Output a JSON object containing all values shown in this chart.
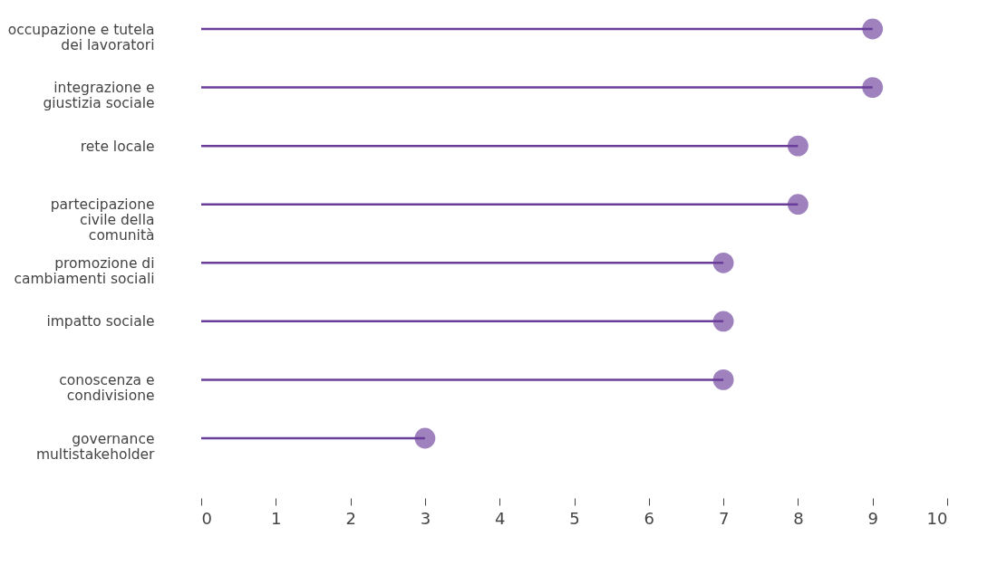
{
  "chart_data": {
    "type": "lollipop",
    "orientation": "horizontal",
    "categories": [
      "occupazione e tutela dei lavoratori",
      "integrazione e giustizia sociale",
      "rete locale",
      "partecipazione civile della comunità",
      "promozione di cambiamenti sociali",
      "impatto sociale",
      "conoscenza e condivisione",
      "governance multistakeholder"
    ],
    "series": [
      {
        "color": "#6a3d9a",
        "values": [
          9,
          9,
          8,
          8,
          7,
          7,
          7,
          3
        ]
      }
    ],
    "marker": "circle",
    "xlim": [
      0,
      10
    ],
    "xticks": [
      0,
      1,
      2,
      3,
      4,
      5,
      6,
      7,
      8,
      9,
      10
    ],
    "grid": false,
    "legend": false
  }
}
